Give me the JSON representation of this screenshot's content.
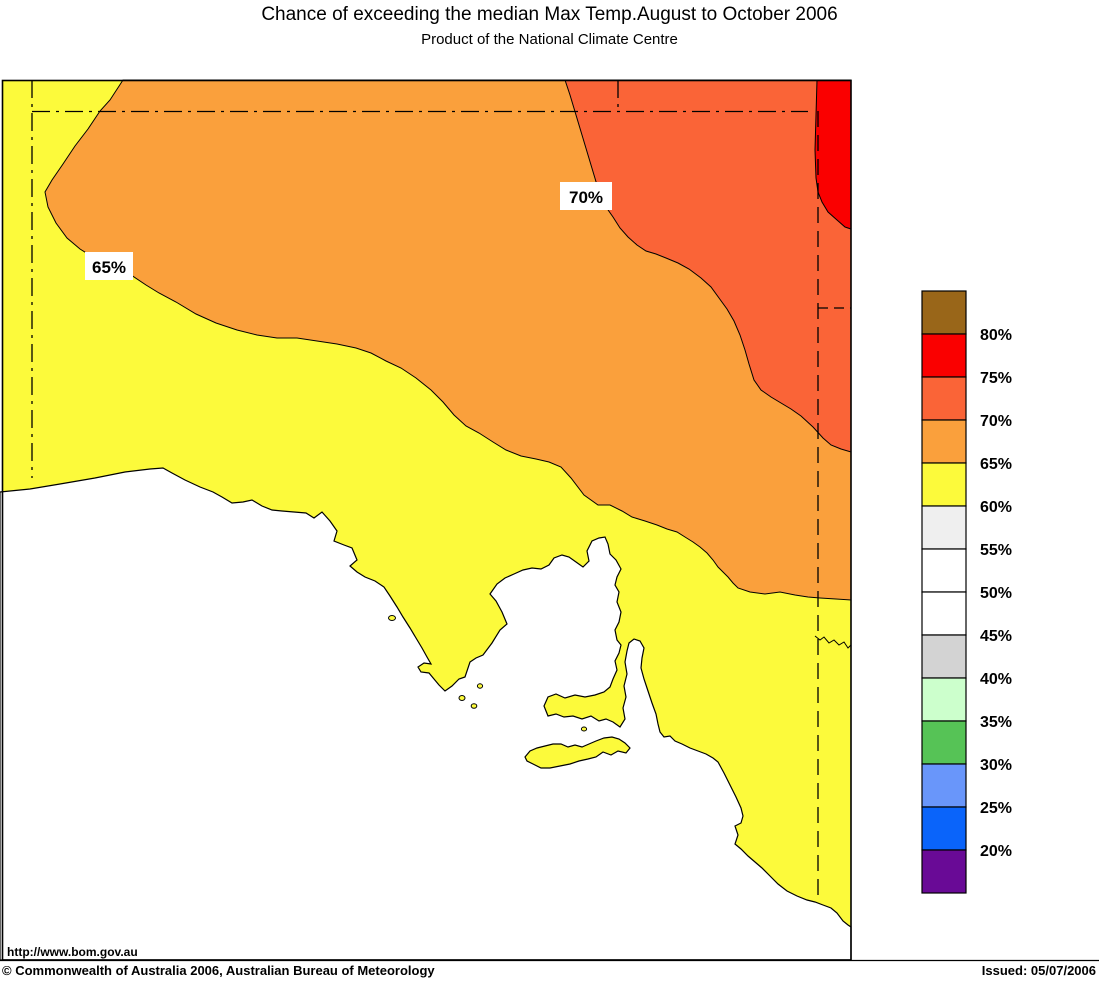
{
  "title": "Chance of exceeding the median Max Temp.August to October 2006",
  "subtitle": "Product of the National Climate Centre",
  "map": {
    "region": "South Australia",
    "url_label": "http://www.bom.gov.au",
    "contour_labels": [
      {
        "text": "65%"
      },
      {
        "text": "70%"
      }
    ]
  },
  "legend": {
    "labels": [
      "80%",
      "75%",
      "70%",
      "65%",
      "60%",
      "55%",
      "50%",
      "45%",
      "40%",
      "35%",
      "30%",
      "25%",
      "20%"
    ],
    "swatches": [
      {
        "name": "above-80",
        "color": "#996619"
      },
      {
        "name": "75-80",
        "color": "#FA0000"
      },
      {
        "name": "70-75",
        "color": "#FA6437"
      },
      {
        "name": "65-70",
        "color": "#FAA03C"
      },
      {
        "name": "60-65",
        "color": "#FCFA3B"
      },
      {
        "name": "55-60",
        "color": "#EFEFEF"
      },
      {
        "name": "50-55",
        "color": "#FFFFFF"
      },
      {
        "name": "45-50",
        "color": "#FFFFFF"
      },
      {
        "name": "40-45",
        "color": "#D3D3D3"
      },
      {
        "name": "35-40",
        "color": "#CCFFCC"
      },
      {
        "name": "30-35",
        "color": "#56C356"
      },
      {
        "name": "25-30",
        "color": "#6996FA"
      },
      {
        "name": "20-25",
        "color": "#0A64FA"
      },
      {
        "name": "below-20",
        "color": "#690A96"
      }
    ]
  },
  "colors": {
    "band_60_65": "#FCFA3B",
    "band_65_70": "#FAA03C",
    "band_70_75": "#FA6437",
    "band_75_80": "#FA0000",
    "ocean": "#FFFFFF",
    "label_box": "#FFFFFF",
    "border": "#000000"
  },
  "footer": {
    "copyright": "© Commonwealth of Australia 2006, Australian Bureau of Meteorology",
    "issued": "Issued: 05/07/2006"
  }
}
